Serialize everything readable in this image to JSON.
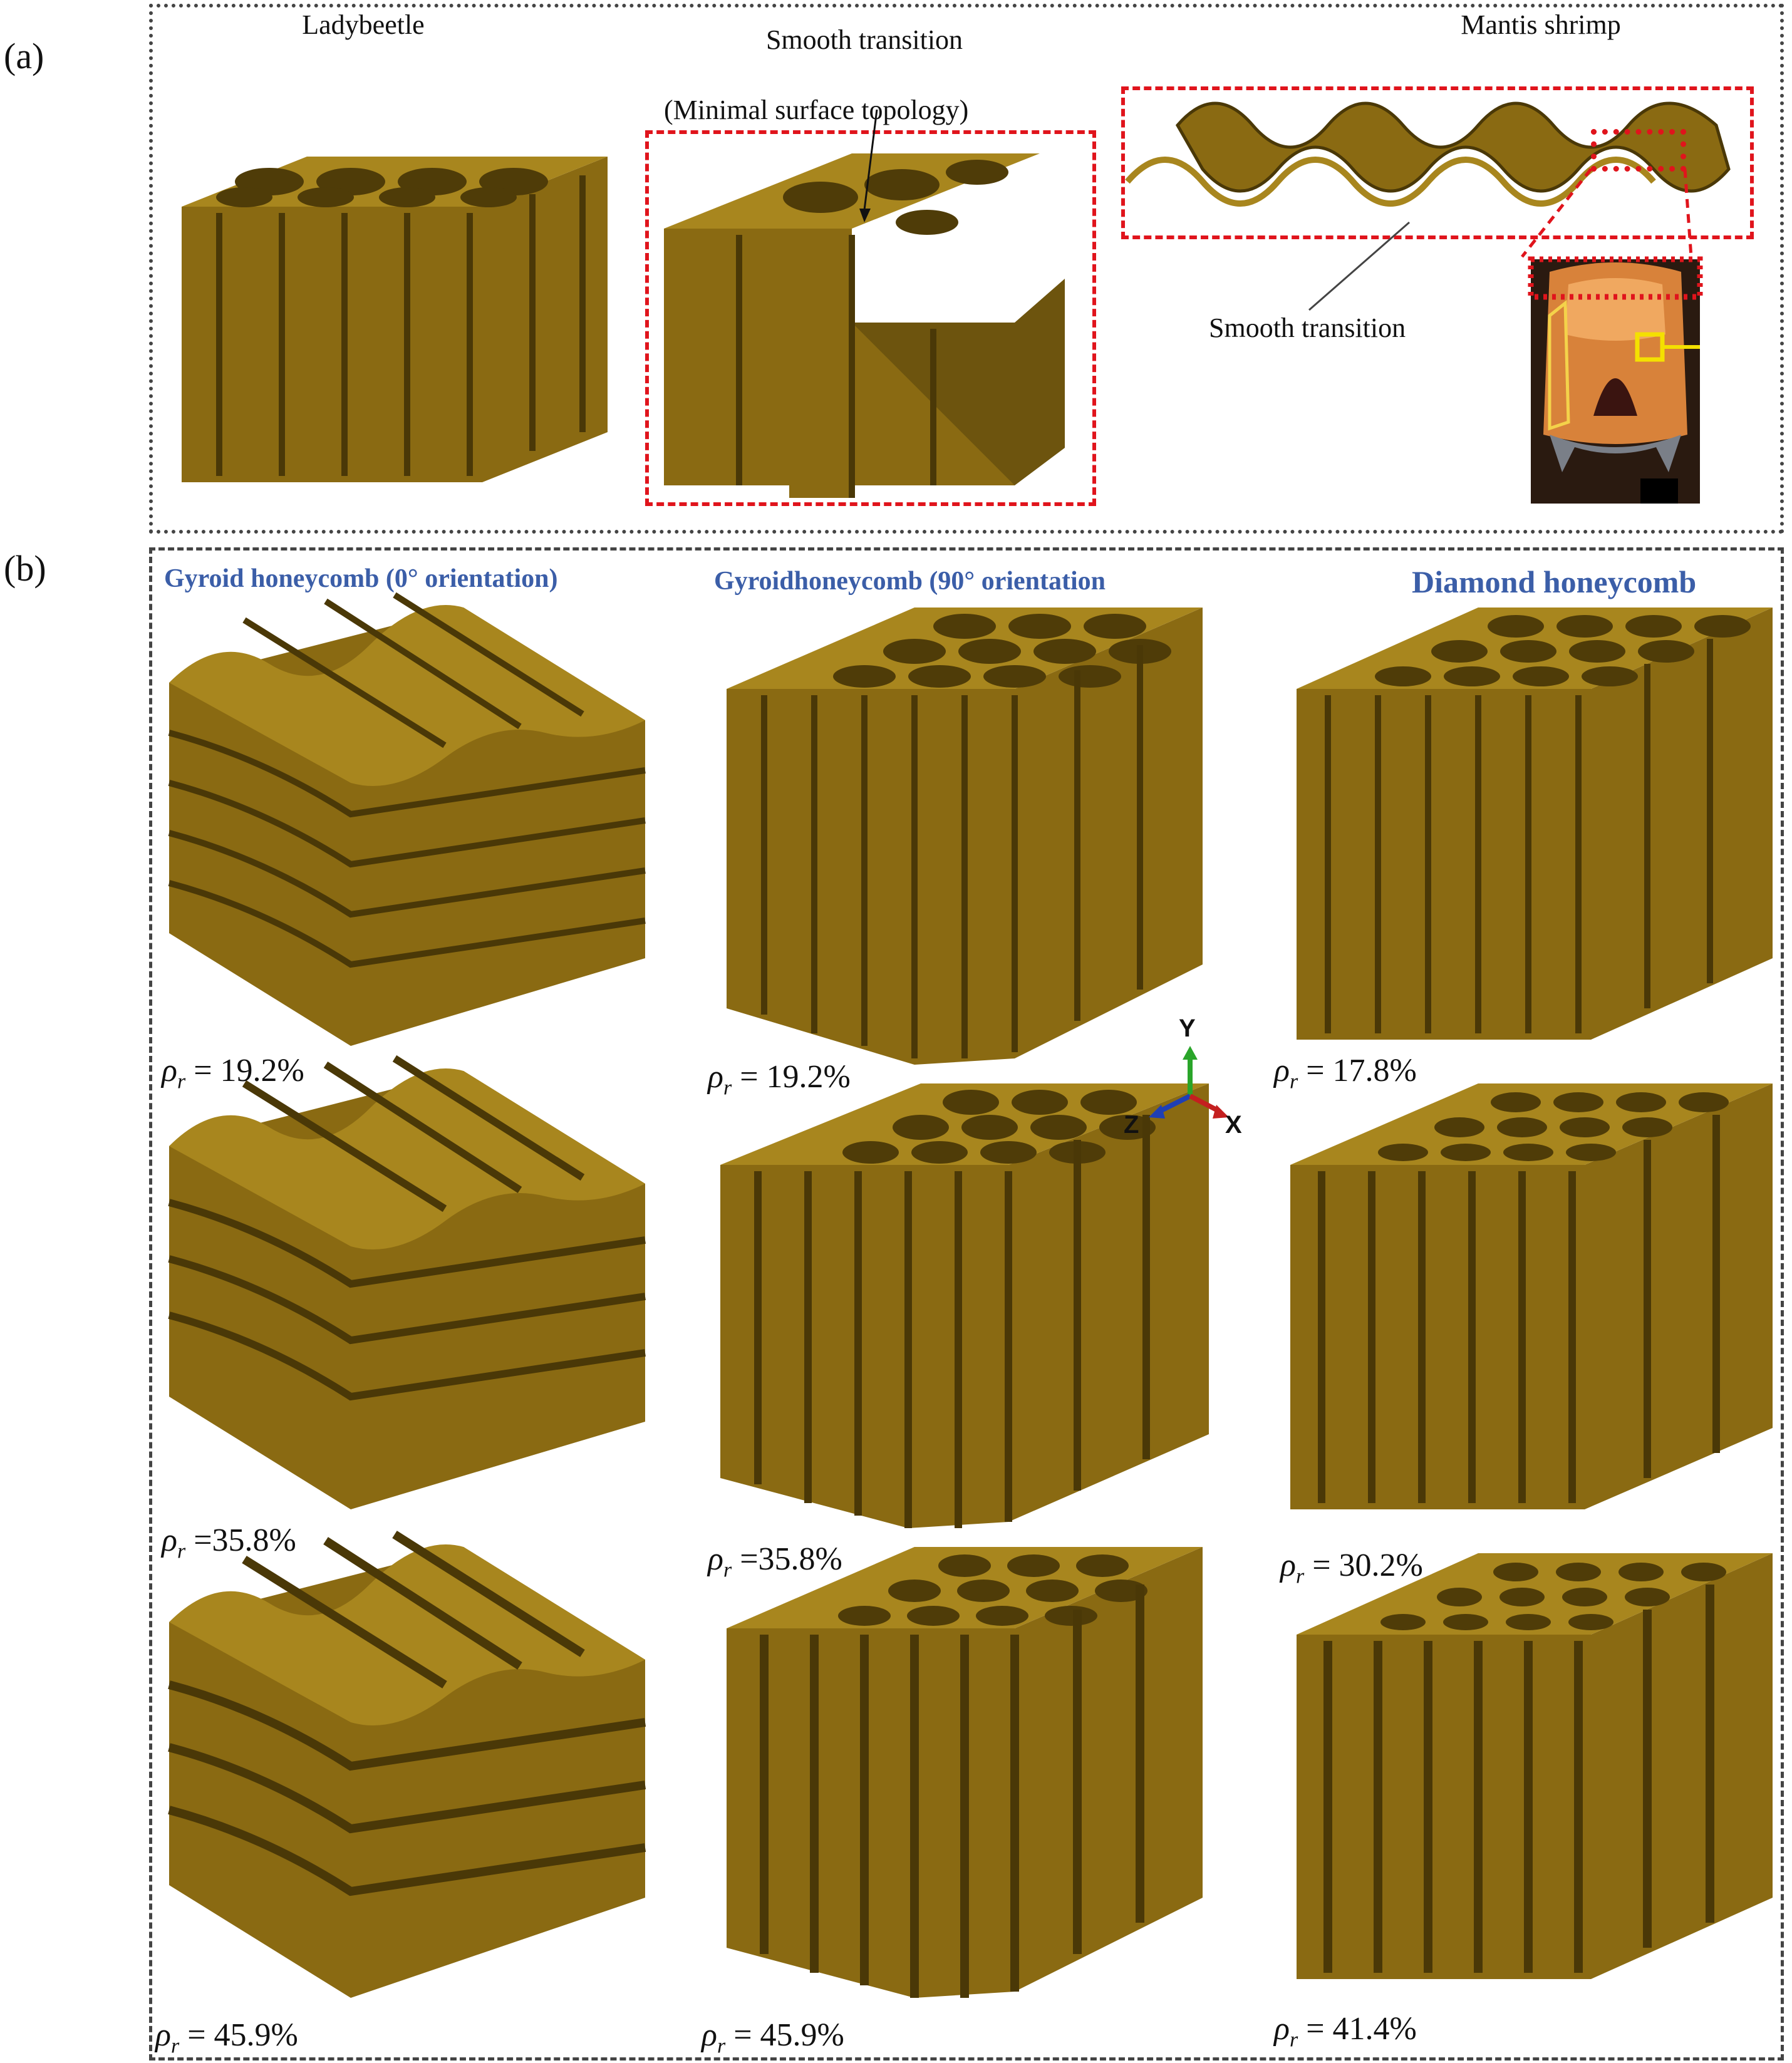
{
  "panel_a": {
    "label": "(a)",
    "titles": {
      "ladybeetle": "Ladybeetle",
      "smooth_transition": "Smooth transition",
      "mantis_shrimp": "Mantis shrimp"
    },
    "annotations": {
      "minimal_surface": "(Minimal surface topology)",
      "smooth_transition_callout": "Smooth   transition"
    }
  },
  "panel_b": {
    "label": "(b)",
    "columns": [
      {
        "title": "Gyroid honeycomb (0° orientation)",
        "densities": [
          "= 19.2%",
          "=35.8%",
          "= 45.9%"
        ]
      },
      {
        "title": "Gyroidhoneycomb (90° orientation",
        "densities": [
          "= 19.2%",
          "=35.8%",
          "= 45.9%"
        ]
      },
      {
        "title": "Diamond honeycomb",
        "densities": [
          "= 17.8%",
          "= 30.2%",
          "= 41.4%"
        ]
      }
    ],
    "density_symbol": "ρ",
    "density_subscript": "r",
    "axes": {
      "y": "Y",
      "z": "Z",
      "x": "X"
    }
  },
  "colors": {
    "material": "#8a6a12",
    "material_light": "#a8861e",
    "material_dark": "#4f3c08",
    "red_box": "#e0141c",
    "title_blue": "#3b5ea8",
    "axis_y": "#2aa52a",
    "axis_z": "#1f3fb5",
    "axis_x": "#c41f1f"
  }
}
